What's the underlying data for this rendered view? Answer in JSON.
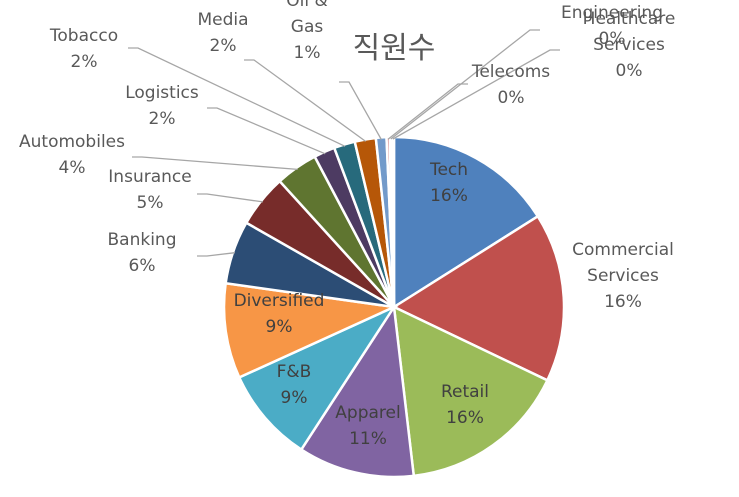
{
  "chart_data": {
    "type": "pie",
    "title": "직원수",
    "legend": "none",
    "series": [
      {
        "label": "Tech",
        "value": 16,
        "value_label": "16%",
        "color": "#4f81bd"
      },
      {
        "label": "Commercial Services",
        "value": 16,
        "value_label": "16%",
        "color": "#c0504d"
      },
      {
        "label": "Retail",
        "value": 16,
        "value_label": "16%",
        "color": "#9bbb59"
      },
      {
        "label": "Apparel",
        "value": 11,
        "value_label": "11%",
        "color": "#8064a2"
      },
      {
        "label": "F&B",
        "value": 9,
        "value_label": "9%",
        "color": "#4bacc6"
      },
      {
        "label": "Diversified",
        "value": 9,
        "value_label": "9%",
        "color": "#f79646"
      },
      {
        "label": "Banking",
        "value": 6,
        "value_label": "6%",
        "color": "#2c4d75"
      },
      {
        "label": "Insurance",
        "value": 5,
        "value_label": "5%",
        "color": "#772c2a"
      },
      {
        "label": "Automobiles",
        "value": 4,
        "value_label": "4%",
        "color": "#5f7530"
      },
      {
        "label": "Logistics",
        "value": 2,
        "value_label": "2%",
        "color": "#4d3b62"
      },
      {
        "label": "Tobacco",
        "value": 2,
        "value_label": "2%",
        "color": "#276a7c"
      },
      {
        "label": "Media",
        "value": 2,
        "value_label": "2%",
        "color": "#b65708"
      },
      {
        "label": "Oil & Gas",
        "value": 1,
        "value_label": "1%",
        "color": "#729aca"
      },
      {
        "label": "Telecoms",
        "value": 0.3,
        "value_label": "0%",
        "color": "#cd7371"
      },
      {
        "label": "Engineering",
        "value": 0.2,
        "value_label": "0%",
        "color": "#afc97a"
      },
      {
        "label": "Healthcare Services",
        "value": 0.2,
        "value_label": "0%",
        "color": "#9983b5"
      }
    ]
  }
}
